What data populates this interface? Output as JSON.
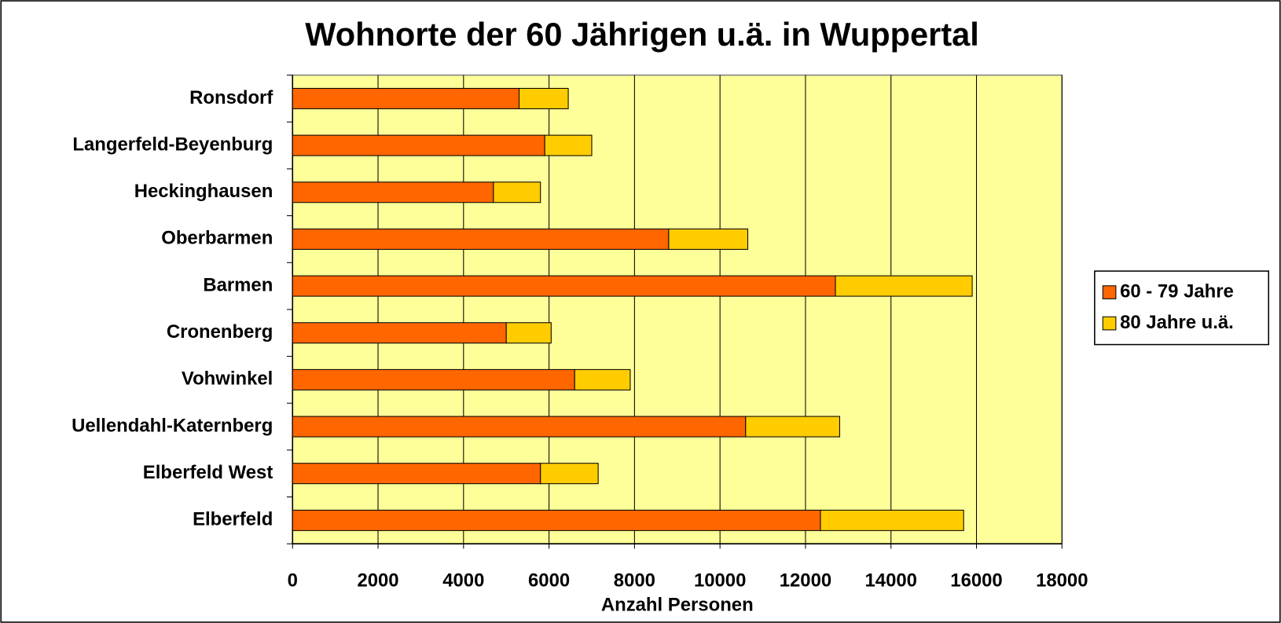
{
  "chart_data": {
    "type": "bar",
    "orientation": "horizontal",
    "stacked": true,
    "title": "Wohnorte der 60 Jährigen u.ä. in Wuppertal",
    "xlabel": "Anzahl Personen",
    "categories": [
      "Ronsdorf",
      "Langerfeld-Beyenburg",
      "Heckinghausen",
      "Oberbarmen",
      "Barmen",
      "Cronenberg",
      "Vohwinkel",
      "Uellendahl-Katernberg",
      "Elberfeld West",
      "Elberfeld"
    ],
    "series": [
      {
        "name": "60 - 79 Jahre",
        "color": "#ff6600",
        "values": [
          5300,
          5900,
          4700,
          8800,
          12700,
          5000,
          6600,
          10600,
          5800,
          12350
        ]
      },
      {
        "name": "80 Jahre u.ä.",
        "color": "#ffcc00",
        "values": [
          1150,
          1100,
          1100,
          1850,
          3200,
          1050,
          1300,
          2200,
          1350,
          3350
        ]
      }
    ],
    "xlim": [
      0,
      18000
    ],
    "xticks": [
      0,
      2000,
      4000,
      6000,
      8000,
      10000,
      12000,
      14000,
      16000,
      18000
    ],
    "grid": true,
    "legend": "right",
    "plot_background": "#ffff99"
  }
}
